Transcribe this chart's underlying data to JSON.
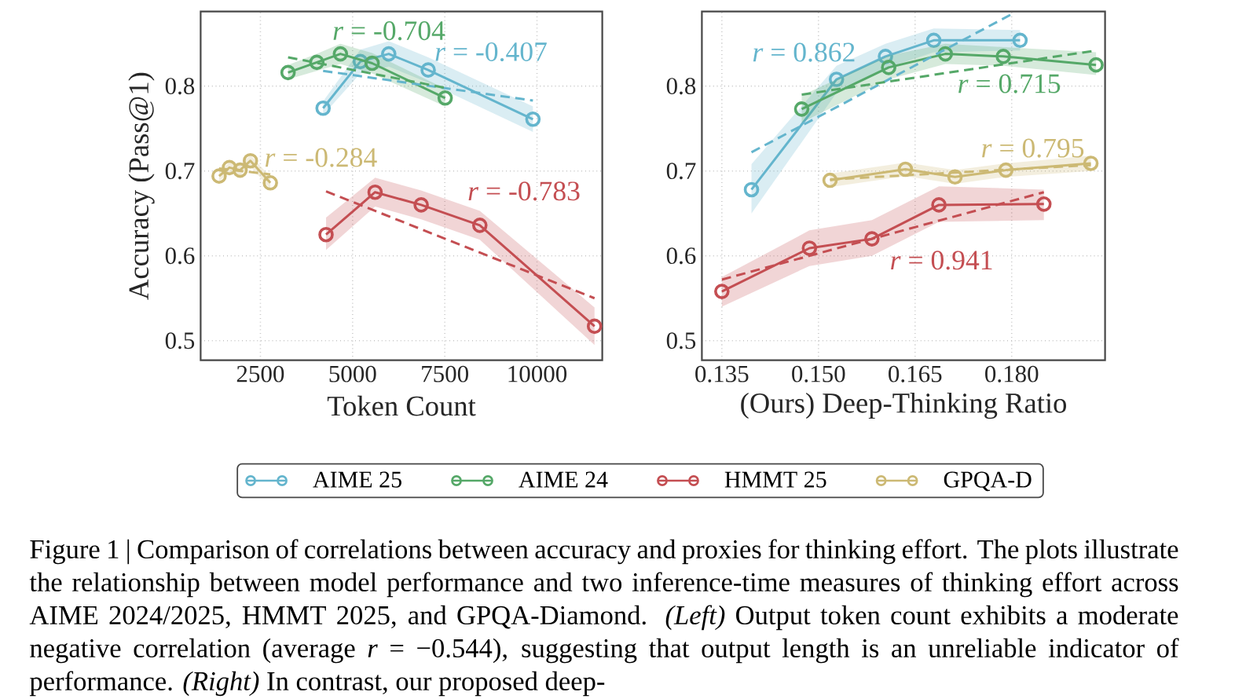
{
  "chart_data": [
    {
      "type": "line",
      "xlabel": "Token Count",
      "ylabel": "Accuracy (Pass@1)",
      "xlim": [
        880,
        11770
      ],
      "ylim": [
        0.477,
        0.888
      ],
      "xticks": [
        2500,
        5000,
        7500,
        10000
      ],
      "yticks": [
        0.5,
        0.6,
        0.7,
        0.8
      ],
      "grid": true,
      "legend": "bottom",
      "marker": "circle",
      "series": [
        {
          "name": "AIME 25",
          "color": "#64b5cd",
          "x": [
            4200,
            5210,
            5980,
            7050,
            9890
          ],
          "values": [
            0.774,
            0.829,
            0.838,
            0.819,
            0.761
          ],
          "lower": [
            0.766,
            0.815,
            0.823,
            0.804,
            0.746
          ],
          "upper": [
            0.782,
            0.843,
            0.853,
            0.834,
            0.776
          ]
        },
        {
          "name": "AIME 24",
          "color": "#55a868",
          "x": [
            3250,
            4030,
            4670,
            5530,
            7510
          ],
          "values": [
            0.816,
            0.828,
            0.838,
            0.827,
            0.786
          ],
          "lower": [
            0.808,
            0.818,
            0.826,
            0.815,
            0.776
          ],
          "upper": [
            0.825,
            0.838,
            0.85,
            0.839,
            0.797
          ]
        },
        {
          "name": "HMMT 25",
          "color": "#c44e52",
          "x": [
            4280,
            5610,
            6860,
            8450,
            11560
          ],
          "values": [
            0.625,
            0.675,
            0.66,
            0.636,
            0.517
          ],
          "lower": [
            0.607,
            0.658,
            0.643,
            0.619,
            0.495
          ],
          "upper": [
            0.645,
            0.692,
            0.677,
            0.653,
            0.539
          ]
        },
        {
          "name": "GPQA-D",
          "color": "#ccb974",
          "x": [
            1380,
            1660,
            1950,
            2230,
            2770
          ],
          "values": [
            0.694,
            0.704,
            0.701,
            0.712,
            0.686
          ],
          "lower": [
            0.688,
            0.698,
            0.695,
            0.705,
            0.679
          ],
          "upper": [
            0.7,
            0.71,
            0.707,
            0.719,
            0.693
          ]
        },
        {
          "type": "line",
          "color": "#64b5cd",
          "x": [
            4200,
            9890
          ],
          "values": [
            0.818,
            0.783
          ],
          "line_style": "dashed",
          "marker": "none"
        },
        {
          "type": "line",
          "color": "#55a868",
          "x": [
            3250,
            7510
          ],
          "values": [
            0.834,
            0.798
          ],
          "line_style": "dashed",
          "marker": "none"
        },
        {
          "type": "line",
          "color": "#c44e52",
          "x": [
            4280,
            11560
          ],
          "values": [
            0.676,
            0.55
          ],
          "line_style": "dashed",
          "marker": "none"
        },
        {
          "type": "line",
          "color": "#ccb974",
          "x": [
            1380,
            2770
          ],
          "values": [
            0.703,
            0.696
          ],
          "line_style": "dashed",
          "marker": "none"
        }
      ],
      "annotations": [
        "*r* = -0.407",
        "*r* = -0.704",
        "*r* = -0.783",
        "*r* = -0.284"
      ]
    },
    {
      "type": "line",
      "xlabel": "(Ours) Deep-Thinking Ratio",
      "xlim": [
        0.1319,
        0.1945
      ],
      "ylim": [
        0.477,
        0.888
      ],
      "xticks": [
        0.135,
        {
          "value": 0.15,
          "label": "0.150"
        },
        0.165,
        {
          "value": 0.18,
          "label": "0.180"
        }
      ],
      "yticks": [
        0.5,
        0.6,
        0.7,
        0.8
      ],
      "grid": true,
      "marker": "circle",
      "series": [
        {
          "color": "#64b5cd",
          "x": [
            0.1396,
            0.1528,
            0.1604,
            0.1679,
            0.1813
          ],
          "values": [
            0.678,
            0.808,
            0.835,
            0.854,
            0.854
          ],
          "lower": [
            0.65,
            0.792,
            0.821,
            0.84,
            0.842
          ],
          "upper": [
            0.708,
            0.824,
            0.85,
            0.868,
            0.866
          ]
        },
        {
          "color": "#55a868",
          "x": [
            0.1474,
            0.1609,
            0.1697,
            0.1787,
            0.1931
          ],
          "values": [
            0.773,
            0.822,
            0.838,
            0.835,
            0.825
          ],
          "lower": [
            0.757,
            0.808,
            0.826,
            0.824,
            0.813
          ],
          "upper": [
            0.789,
            0.836,
            0.85,
            0.846,
            0.84
          ]
        },
        {
          "color": "#c44e52",
          "x": [
            0.135,
            0.1486,
            0.1583,
            0.1687,
            0.185
          ],
          "values": [
            0.558,
            0.609,
            0.62,
            0.66,
            0.661
          ],
          "lower": [
            0.54,
            0.588,
            0.6,
            0.64,
            0.642
          ],
          "upper": [
            0.575,
            0.63,
            0.642,
            0.682,
            0.678
          ]
        },
        {
          "color": "#ccb974",
          "x": [
            0.1518,
            0.1635,
            0.1712,
            0.1791,
            0.1923
          ],
          "values": [
            0.689,
            0.702,
            0.693,
            0.701,
            0.709
          ],
          "lower": [
            0.681,
            0.694,
            0.685,
            0.693,
            0.7
          ],
          "upper": [
            0.697,
            0.71,
            0.701,
            0.709,
            0.718
          ]
        },
        {
          "type": "line",
          "color": "#64b5cd",
          "x": [
            0.1396,
            0.1803
          ],
          "values": [
            0.722,
            0.886
          ],
          "line_style": "dashed",
          "marker": "none"
        },
        {
          "type": "line",
          "color": "#55a868",
          "x": [
            0.1474,
            0.1931
          ],
          "values": [
            0.79,
            0.842
          ],
          "line_style": "dashed",
          "marker": "none"
        },
        {
          "type": "line",
          "color": "#c44e52",
          "x": [
            0.135,
            0.185
          ],
          "values": [
            0.572,
            0.675
          ],
          "line_style": "dashed",
          "marker": "none"
        },
        {
          "type": "line",
          "color": "#ccb974",
          "x": [
            0.1518,
            0.1923
          ],
          "values": [
            0.69,
            0.707
          ],
          "line_style": "dashed",
          "marker": "none"
        }
      ],
      "annotations": [
        "*r* = 0.862",
        "*r* = 0.715",
        "*r* = 0.941",
        "*r* = 0.795",
        "Figure 1 | Comparison of correlations between accuracy and proxies for thinking effort. The plots illustrate the relationship between model performance and two inference-time measures of thinking effort across AIME 2024/2025, HMMT 2025, and GPQA-Diamond. *(Left)* Output token count exhibits a moderate negative correlation (average *r* = −0.544), suggesting that output length is an unreliable indicator of performance. *(Right)* In contrast, our proposed deep-"
      ]
    }
  ]
}
